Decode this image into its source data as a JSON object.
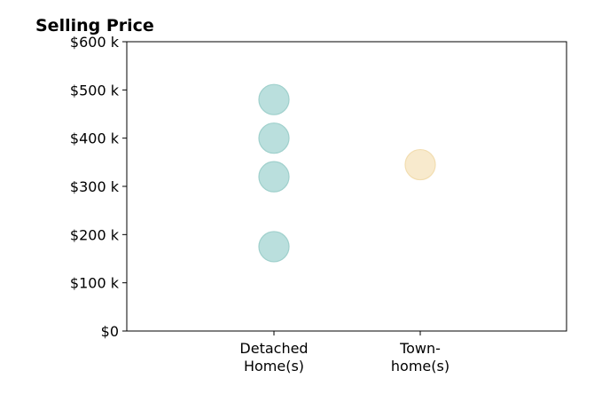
{
  "chart_data": {
    "type": "scatter",
    "title": "Selling Price",
    "xlabel": "",
    "ylabel": "",
    "categories": [
      [
        "Detached",
        "Home(s)"
      ],
      [
        "Town-",
        "home(s)"
      ]
    ],
    "y_ticks": [
      {
        "value": 0,
        "label": "$0"
      },
      {
        "value": 100,
        "label": "$100 k"
      },
      {
        "value": 200,
        "label": "$200 k"
      },
      {
        "value": 300,
        "label": "$300 k"
      },
      {
        "value": 400,
        "label": "$400 k"
      },
      {
        "value": 500,
        "label": "$500 k"
      },
      {
        "value": 600,
        "label": "$600 k"
      }
    ],
    "ylim": [
      0,
      600
    ],
    "y_unit": "thousand USD",
    "grid": false,
    "legend": "none",
    "series": [
      {
        "category_index": 0,
        "values": [
          480,
          400,
          320,
          175
        ],
        "color": "#b3dcd9",
        "edge_color": "#9fd0cc"
      },
      {
        "category_index": 1,
        "values": [
          345
        ],
        "color": "#f7e8c8",
        "edge_color": "#f2ddb0"
      }
    ]
  }
}
